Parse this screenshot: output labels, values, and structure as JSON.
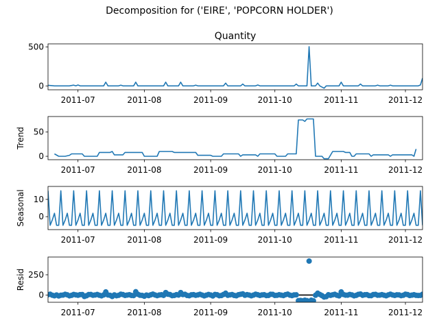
{
  "suptitle": "Decomposition for ('EIRE', 'POPCORN HOLDER')",
  "x_tick_labels": [
    "2011-07",
    "2011-08",
    "2011-09",
    "2011-10",
    "2011-11",
    "2011-12"
  ],
  "x_tick_dates": [
    "2011-07-01",
    "2011-08-01",
    "2011-09-01",
    "2011-10-01",
    "2011-11-01",
    "2011-12-01"
  ],
  "x_range": [
    "2011-06-17",
    "2011-12-09"
  ],
  "colors": {
    "series": "#1f77b4",
    "axis": "#000000",
    "zero_line": "#000000"
  },
  "chart_data": [
    {
      "type": "line",
      "title": "Quantity",
      "ylabel": "",
      "ylim": [
        -50,
        540
      ],
      "yticks": [
        0,
        500
      ],
      "points": [
        [
          "2011-06-17",
          8
        ],
        [
          "2011-06-20",
          0
        ],
        [
          "2011-06-27",
          0
        ],
        [
          "2011-06-29",
          10
        ],
        [
          "2011-06-30",
          0
        ],
        [
          "2011-07-01",
          12
        ],
        [
          "2011-07-02",
          0
        ],
        [
          "2011-07-13",
          0
        ],
        [
          "2011-07-14",
          48
        ],
        [
          "2011-07-15",
          0
        ],
        [
          "2011-07-20",
          0
        ],
        [
          "2011-07-21",
          10
        ],
        [
          "2011-07-22",
          0
        ],
        [
          "2011-07-27",
          0
        ],
        [
          "2011-07-28",
          48
        ],
        [
          "2011-07-29",
          0
        ],
        [
          "2011-08-10",
          0
        ],
        [
          "2011-08-11",
          48
        ],
        [
          "2011-08-12",
          0
        ],
        [
          "2011-08-17",
          0
        ],
        [
          "2011-08-18",
          48
        ],
        [
          "2011-08-19",
          0
        ],
        [
          "2011-08-24",
          0
        ],
        [
          "2011-08-25",
          10
        ],
        [
          "2011-08-26",
          0
        ],
        [
          "2011-09-07",
          0
        ],
        [
          "2011-09-08",
          36
        ],
        [
          "2011-09-09",
          0
        ],
        [
          "2011-09-15",
          0
        ],
        [
          "2011-09-16",
          24
        ],
        [
          "2011-09-17",
          0
        ],
        [
          "2011-09-22",
          0
        ],
        [
          "2011-09-23",
          12
        ],
        [
          "2011-09-24",
          0
        ],
        [
          "2011-10-10",
          0
        ],
        [
          "2011-10-11",
          24
        ],
        [
          "2011-10-12",
          0
        ],
        [
          "2011-10-16",
          0
        ],
        [
          "2011-10-17",
          504
        ],
        [
          "2011-10-18",
          0
        ],
        [
          "2011-10-20",
          0
        ],
        [
          "2011-10-21",
          36
        ],
        [
          "2011-10-22",
          0
        ],
        [
          "2011-10-24",
          -30
        ],
        [
          "2011-10-25",
          0
        ],
        [
          "2011-10-31",
          0
        ],
        [
          "2011-11-01",
          48
        ],
        [
          "2011-11-02",
          0
        ],
        [
          "2011-11-09",
          0
        ],
        [
          "2011-11-10",
          24
        ],
        [
          "2011-11-11",
          0
        ],
        [
          "2011-11-17",
          0
        ],
        [
          "2011-11-18",
          10
        ],
        [
          "2011-11-19",
          0
        ],
        [
          "2011-11-23",
          0
        ],
        [
          "2011-11-24",
          10
        ],
        [
          "2011-11-25",
          0
        ],
        [
          "2011-12-07",
          0
        ],
        [
          "2011-12-08",
          12
        ],
        [
          "2011-12-09",
          100
        ]
      ]
    },
    {
      "type": "line",
      "title": "",
      "ylabel": "Trend",
      "ylim": [
        -7,
        82
      ],
      "yticks": [
        0,
        50
      ],
      "points": [
        [
          "2011-06-20",
          5
        ],
        [
          "2011-06-22",
          0
        ],
        [
          "2011-06-25",
          0
        ],
        [
          "2011-06-27",
          2
        ],
        [
          "2011-06-28",
          5
        ],
        [
          "2011-07-03",
          5
        ],
        [
          "2011-07-04",
          0
        ],
        [
          "2011-07-10",
          0
        ],
        [
          "2011-07-11",
          8
        ],
        [
          "2011-07-16",
          8
        ],
        [
          "2011-07-17",
          10
        ],
        [
          "2011-07-18",
          3
        ],
        [
          "2011-07-22",
          3
        ],
        [
          "2011-07-23",
          8
        ],
        [
          "2011-07-31",
          8
        ],
        [
          "2011-08-01",
          0
        ],
        [
          "2011-08-07",
          0
        ],
        [
          "2011-08-08",
          10
        ],
        [
          "2011-08-14",
          10
        ],
        [
          "2011-08-15",
          8
        ],
        [
          "2011-08-25",
          8
        ],
        [
          "2011-08-26",
          2
        ],
        [
          "2011-09-01",
          2
        ],
        [
          "2011-09-02",
          0
        ],
        [
          "2011-09-06",
          0
        ],
        [
          "2011-09-07",
          5
        ],
        [
          "2011-09-14",
          5
        ],
        [
          "2011-09-15",
          0
        ],
        [
          "2011-09-16",
          3
        ],
        [
          "2011-09-22",
          3
        ],
        [
          "2011-09-23",
          0
        ],
        [
          "2011-09-24",
          5
        ],
        [
          "2011-10-01",
          5
        ],
        [
          "2011-10-02",
          0
        ],
        [
          "2011-10-06",
          0
        ],
        [
          "2011-10-07",
          5
        ],
        [
          "2011-10-11",
          5
        ],
        [
          "2011-10-12",
          75
        ],
        [
          "2011-10-14",
          75
        ],
        [
          "2011-10-15",
          72
        ],
        [
          "2011-10-16",
          77
        ],
        [
          "2011-10-19",
          77
        ],
        [
          "2011-10-20",
          0
        ],
        [
          "2011-10-23",
          0
        ],
        [
          "2011-10-24",
          -5
        ],
        [
          "2011-10-26",
          -5
        ],
        [
          "2011-10-28",
          10
        ],
        [
          "2011-11-02",
          10
        ],
        [
          "2011-11-03",
          8
        ],
        [
          "2011-11-05",
          8
        ],
        [
          "2011-11-06",
          0
        ],
        [
          "2011-11-07",
          0
        ],
        [
          "2011-11-08",
          5
        ],
        [
          "2011-11-14",
          5
        ],
        [
          "2011-11-15",
          0
        ],
        [
          "2011-11-16",
          3
        ],
        [
          "2011-11-23",
          3
        ],
        [
          "2011-11-24",
          0
        ],
        [
          "2011-11-25",
          3
        ],
        [
          "2011-12-04",
          3
        ],
        [
          "2011-12-05",
          0
        ],
        [
          "2011-12-06",
          15
        ]
      ]
    },
    {
      "type": "line",
      "title": "",
      "ylabel": "Seasonal",
      "ylim": [
        -7.5,
        17.5
      ],
      "yticks": [
        0,
        10
      ],
      "period_days": 6,
      "pattern": [
        15,
        -5,
        -2,
        2,
        -5,
        -5
      ],
      "start_date": "2011-06-17",
      "end_date": "2011-12-09"
    },
    {
      "type": "scatter",
      "title": "",
      "ylabel": "Resid",
      "ylim": [
        -90,
        470
      ],
      "yticks": [
        0,
        250
      ],
      "zero_line": true,
      "points": [
        [
          "2011-10-17",
          420
        ],
        [
          "2011-07-14",
          38
        ],
        [
          "2011-07-28",
          40
        ],
        [
          "2011-08-11",
          30
        ],
        [
          "2011-08-18",
          30
        ],
        [
          "2011-11-01",
          38
        ],
        [
          "2011-09-08",
          22
        ],
        [
          "2011-10-21",
          22
        ],
        [
          "2011-09-16",
          14
        ],
        [
          "2011-11-10",
          12
        ],
        [
          "2011-12-08",
          -5
        ],
        [
          "2011-10-12",
          -70
        ],
        [
          "2011-10-13",
          -68
        ],
        [
          "2011-10-14",
          -72
        ],
        [
          "2011-10-15",
          -65
        ],
        [
          "2011-10-16",
          -70
        ],
        [
          "2011-10-18",
          -65
        ],
        [
          "2011-10-19",
          -72
        ],
        [
          "2011-10-24",
          -25
        ],
        [
          "2011-10-25",
          -20
        ],
        [
          "2011-07-04",
          -18
        ],
        [
          "2011-08-01",
          -15
        ],
        [
          "2011-09-02",
          -12
        ],
        [
          "2011-07-17",
          -18
        ],
        [
          "2011-06-22",
          -12
        ]
      ],
      "noise_start": "2011-06-17",
      "noise_end": "2011-12-09",
      "noise_amplitude": 12
    }
  ]
}
